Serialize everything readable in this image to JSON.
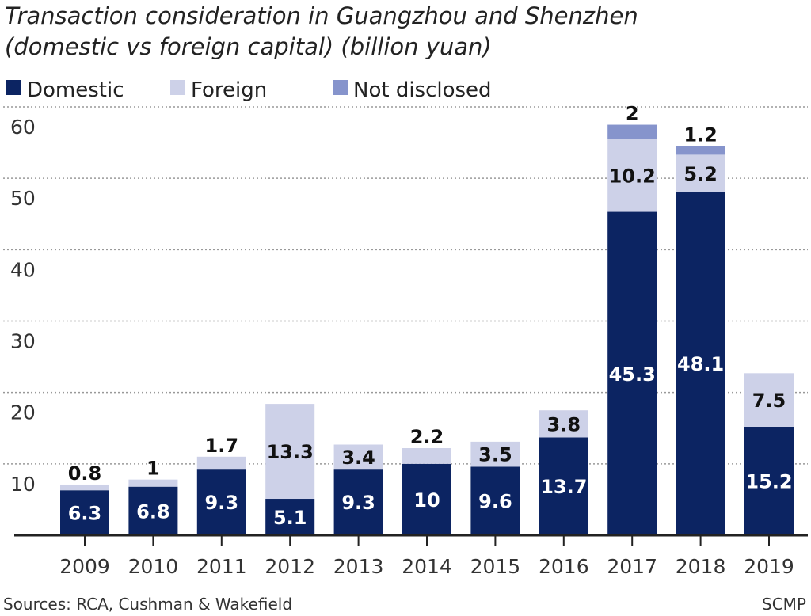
{
  "chart_data": {
    "type": "bar",
    "stacked": true,
    "title_lines": [
      "Transaction consideration in Guangzhou and Shenzhen",
      "(domestic vs foreign capital) (billion yuan)"
    ],
    "xlabel": "",
    "ylabel": "",
    "categories": [
      "2009",
      "2010",
      "2011",
      "2012",
      "2013",
      "2014",
      "2015",
      "2016",
      "2017",
      "2018",
      "2019"
    ],
    "series": [
      {
        "name": "Domestic",
        "color": "#0c2462",
        "values": [
          6.3,
          6.8,
          9.3,
          5.1,
          9.3,
          10,
          9.6,
          13.7,
          45.3,
          48.1,
          15.2
        ]
      },
      {
        "name": "Foreign",
        "color": "#cdd1e8",
        "values": [
          0.8,
          1,
          1.7,
          13.3,
          3.4,
          2.2,
          3.5,
          3.8,
          10.2,
          5.2,
          7.5
        ]
      },
      {
        "name": "Not disclosed",
        "color": "#8694cc",
        "values": [
          null,
          null,
          null,
          null,
          null,
          null,
          null,
          null,
          2,
          1.2,
          null
        ]
      }
    ],
    "ylim": [
      0,
      60
    ],
    "yticks": [
      10,
      20,
      30,
      40,
      50,
      60
    ],
    "grid": "dotted horizontal",
    "legend": "top-left"
  },
  "footer": {
    "source": "Sources: RCA, Cushman & Wakefield",
    "credit": "SCMP"
  }
}
